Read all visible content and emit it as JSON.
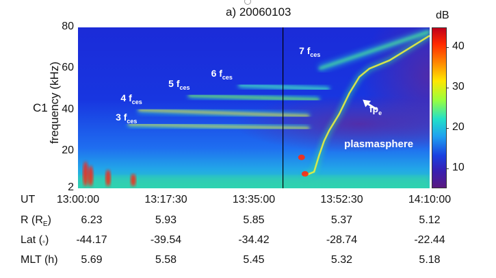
{
  "chart_data": {
    "type": "heatmap",
    "title": "a) 20060103",
    "panel_label": "C1",
    "ylabel": "frequency (kHz)",
    "ylim": [
      2,
      80
    ],
    "yticks": [
      "80",
      "60",
      "40",
      "20",
      "2"
    ],
    "ytick_values": [
      80,
      60,
      40,
      20,
      2
    ],
    "x_row_label": "UT",
    "xticks": [
      "13:00:00",
      "13:17:30",
      "13:35:00",
      "13:52:30",
      "14:10:00"
    ],
    "xtick_minutes": [
      0,
      17.5,
      35,
      52.5,
      70
    ],
    "colorbar": {
      "unit": "dB",
      "ticks": [
        "40",
        "30",
        "20",
        "10"
      ],
      "tick_values": [
        40,
        30,
        20,
        10
      ],
      "range": [
        5,
        45
      ],
      "colors": [
        "#c0001a",
        "#ff2a00",
        "#ff8a00",
        "#ffe600",
        "#9bff3c",
        "#22e0c8",
        "#1ea0f0",
        "#1a40e0",
        "#3a1fb0",
        "#5a1a80"
      ]
    },
    "annotations": [
      {
        "main": "3 f",
        "sub": "ces",
        "minute": 7.5,
        "khz": 36
      },
      {
        "main": "4 f",
        "sub": "ces",
        "minute": 8.5,
        "khz": 45
      },
      {
        "main": "5 f",
        "sub": "ces",
        "minute": 18,
        "khz": 52
      },
      {
        "main": "6 f",
        "sub": "ces",
        "minute": 26.5,
        "khz": 57
      },
      {
        "main": "7 f",
        "sub": "ces",
        "minute": 44,
        "khz": 68
      },
      {
        "main": "fp",
        "sub": "e",
        "minute": 58,
        "khz": 40
      },
      {
        "main": "plasmasphere",
        "sub": "",
        "minute": 53,
        "khz": 23
      }
    ],
    "bands": [
      {
        "name": "3 f_ces",
        "start_min": 10,
        "end_min": 46,
        "khz": [
          33,
          31
        ]
      },
      {
        "name": "4 f_ces",
        "start_min": 12,
        "end_min": 46,
        "khz": [
          40,
          37
        ]
      },
      {
        "name": "5 f_ces",
        "start_min": 22,
        "end_min": 48,
        "khz": [
          47,
          45
        ]
      },
      {
        "name": "6 f_ces",
        "start_min": 32,
        "end_min": 50,
        "khz": [
          52,
          50
        ]
      },
      {
        "name": "7 f_ces",
        "start_min": 48,
        "end_min": 70,
        "khz": [
          60,
          78
        ]
      }
    ],
    "fpe_trace": {
      "minutes": [
        45,
        47,
        48,
        49,
        50,
        52,
        54,
        56,
        58,
        62,
        66,
        70
      ],
      "khz": [
        8,
        10,
        18,
        25,
        30,
        38,
        48,
        56,
        60,
        64,
        70,
        76
      ]
    },
    "vertical_marker_minute": 40.8
  },
  "ephemeris": [
    {
      "label": "R (R",
      "label_sub": "E",
      "label_end": ")",
      "values": [
        "6.23",
        "5.93",
        "5.85",
        "5.37",
        "5.12"
      ]
    },
    {
      "label": "Lat (",
      "label_sub": "°",
      "label_end": ")",
      "values": [
        "-44.17",
        "-39.54",
        "-34.42",
        "-28.74",
        "-22.44"
      ]
    },
    {
      "label": "MLT (h)",
      "label_sub": "",
      "label_end": "",
      "values": [
        "5.69",
        "5.58",
        "5.45",
        "5.32",
        "5.18"
      ]
    }
  ]
}
